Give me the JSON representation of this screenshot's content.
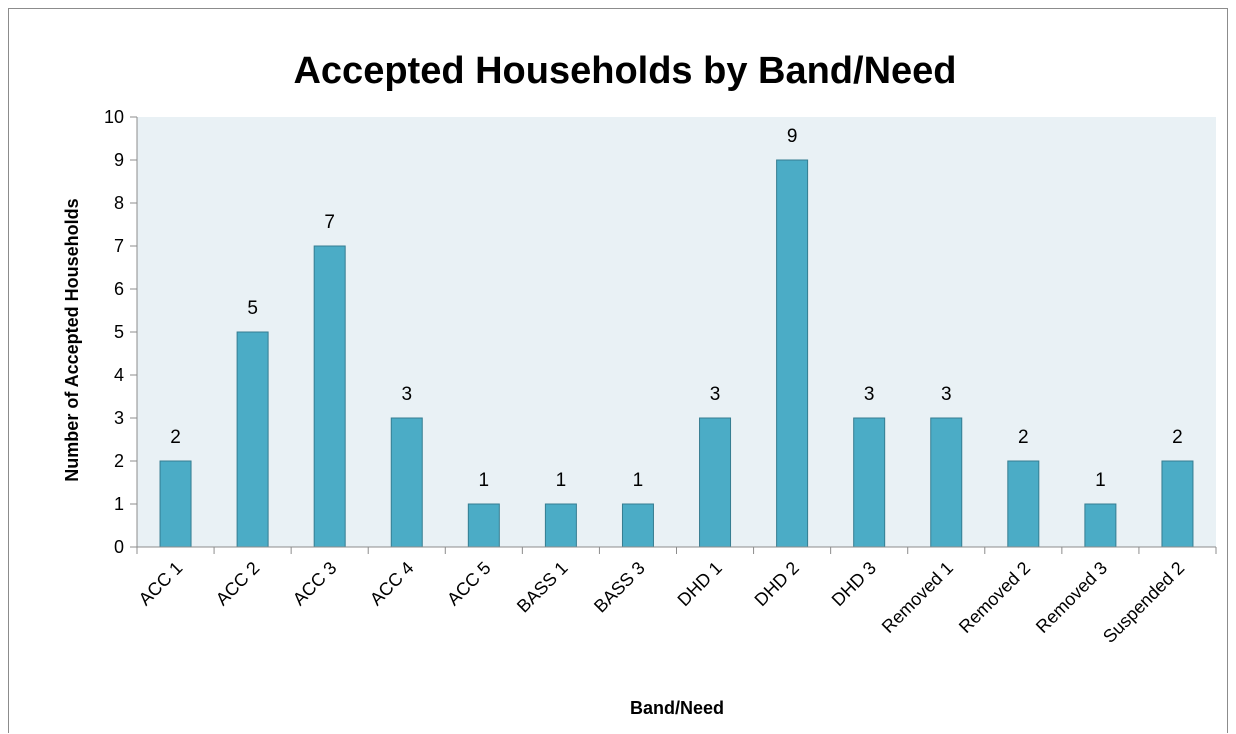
{
  "chart_data": {
    "type": "bar",
    "title": "Accepted Households by Band/Need",
    "xlabel": "Band/Need",
    "ylabel": "Number of Accepted Households",
    "categories": [
      "ACC 1",
      "ACC 2",
      "ACC 3",
      "ACC 4",
      "ACC 5",
      "BASS 1",
      "BASS 3",
      "DHD 1",
      "DHD 2",
      "DHD 3",
      "Removed 1",
      "Removed 2",
      "Removed 3",
      "Suspended 2"
    ],
    "values": [
      2,
      5,
      7,
      3,
      1,
      1,
      1,
      3,
      9,
      3,
      3,
      2,
      1,
      2
    ],
    "ylim": [
      0,
      10
    ],
    "yticks": [
      "0",
      "1",
      "2",
      "3",
      "4",
      "5",
      "6",
      "7",
      "8",
      "9",
      "10"
    ],
    "data_labels": true,
    "grid": false,
    "legend": "none",
    "colors": {
      "bar_fill": "#4bacc6",
      "bar_stroke": "#357d91",
      "plot_background": "#e9f1f5",
      "axis": "#8c8c8c"
    }
  }
}
